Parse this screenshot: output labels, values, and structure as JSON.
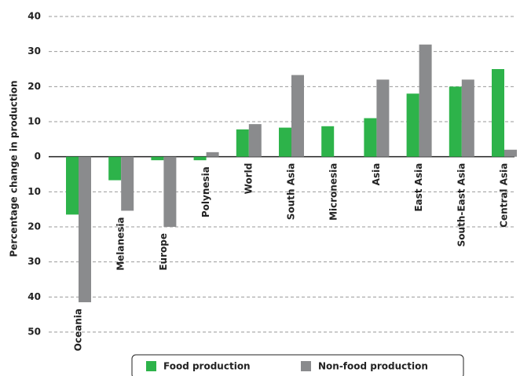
{
  "chart_data": {
    "type": "bar",
    "y_label": "Percentage change in production",
    "categories": [
      "Oceania",
      "Melanesia",
      "Europe",
      "Polynesia",
      "World",
      "South Asia",
      "Micronesia",
      "Asia",
      "East Asia",
      "South-East Asia",
      "Central Asia"
    ],
    "series": [
      {
        "name": "Food production",
        "color": "#2db34a",
        "values": [
          -16.5,
          -6.7,
          -1,
          -1,
          7.8,
          8.3,
          8.7,
          11,
          18,
          20,
          25
        ]
      },
      {
        "name": "Non-food production",
        "color": "#8a8b8d",
        "values": [
          -41.5,
          -15.4,
          -20,
          1.3,
          9.3,
          23.3,
          0,
          22,
          32,
          22,
          2
        ]
      }
    ],
    "ylim": [
      -50,
      40
    ],
    "yticks": [
      40,
      30,
      20,
      10,
      0,
      {
        "value": -10,
        "label": "10"
      },
      {
        "value": -20,
        "label": "20"
      },
      {
        "value": -30,
        "label": "30"
      },
      {
        "value": -40,
        "label": "40"
      },
      {
        "value": -50,
        "label": "50"
      }
    ],
    "grid": true,
    "legend": "bottom"
  }
}
